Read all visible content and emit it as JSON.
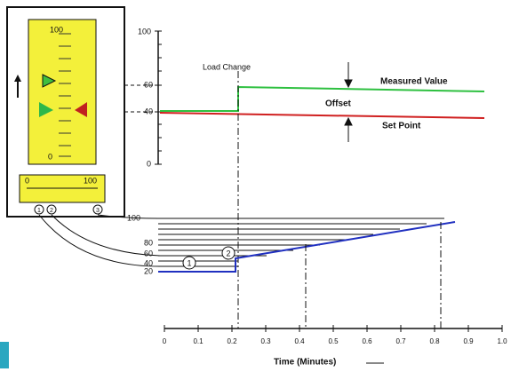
{
  "faceplate": {
    "scale_top": "100",
    "scale_bottom": "0",
    "output_min": "0",
    "output_max": "100",
    "jacks": [
      "1",
      "2",
      "3"
    ]
  },
  "upper_chart": {
    "yticks": [
      "100",
      "60",
      "40",
      "0"
    ],
    "load_change": "Load Change",
    "measured_value": "Measured Value",
    "offset": "Offset",
    "set_point": "Set Point"
  },
  "lower_chart": {
    "yticks": [
      "100",
      "80",
      "60",
      "40",
      "20"
    ],
    "markers": [
      "1",
      "2"
    ],
    "xticks": [
      "0",
      "0.1",
      "0.2",
      "0.3",
      "0.4",
      "0.5",
      "0.6",
      "0.7",
      "0.8",
      "0.9",
      "1.0"
    ],
    "xlabel": "Time (Minutes)"
  }
}
